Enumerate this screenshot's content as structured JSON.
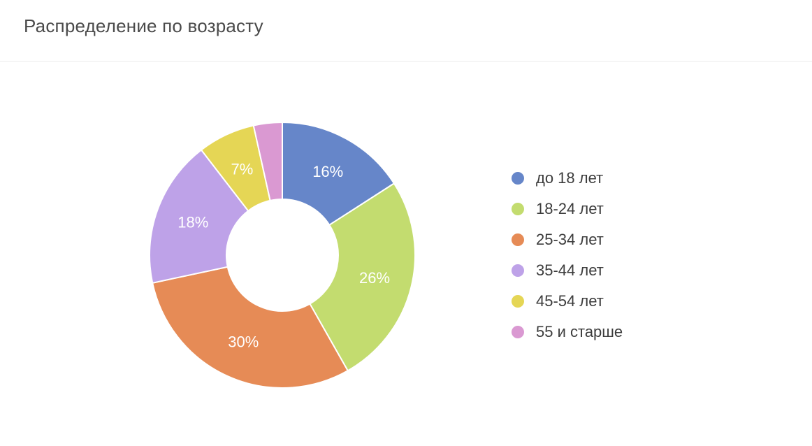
{
  "header": {
    "title": "Распределение по возрасту"
  },
  "chart_data": {
    "type": "pie",
    "variant": "donut",
    "title": "Распределение по возрасту",
    "categories": [
      "до 18 лет",
      "18-24 лет",
      "25-34 лет",
      "35-44 лет",
      "45-54 лет",
      "55 и старше"
    ],
    "values": [
      16,
      26,
      30,
      18,
      7,
      3.5
    ],
    "data_labels": [
      "16%",
      "26%",
      "30%",
      "18%",
      "7%",
      ""
    ],
    "colors": [
      "#6686c9",
      "#c3dc6f",
      "#e68b56",
      "#bea2e8",
      "#e5d655",
      "#da99d2"
    ],
    "legend_position": "right",
    "unit": "%"
  }
}
